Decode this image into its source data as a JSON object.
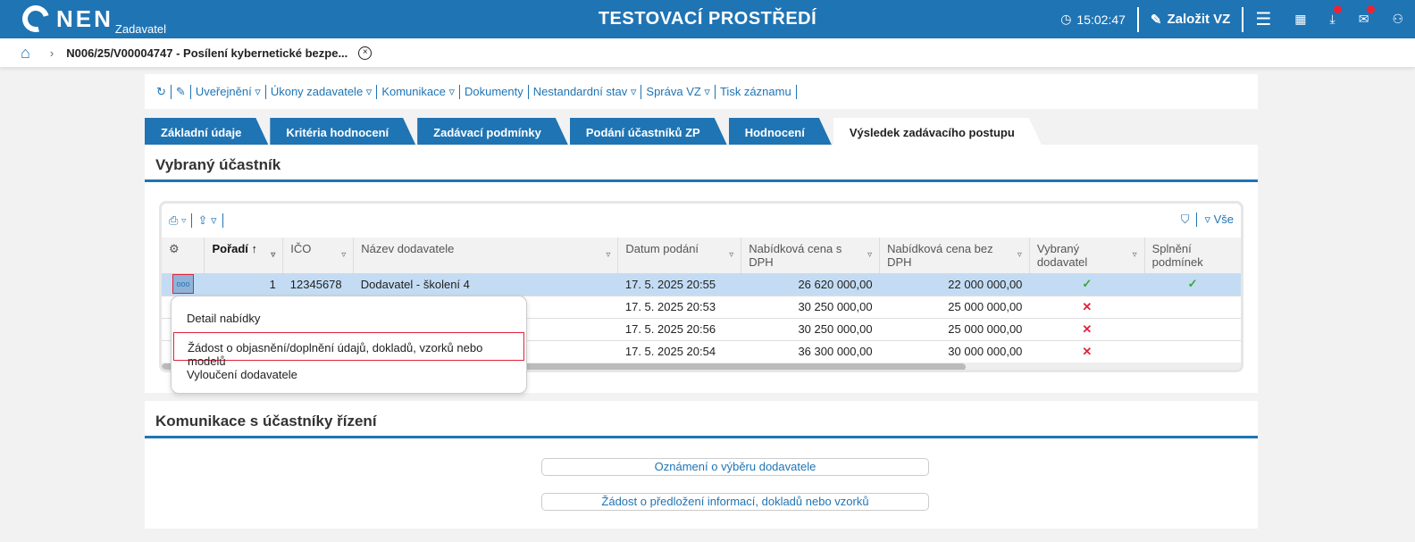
{
  "header": {
    "logo": "NEN",
    "logo_sub": "Zadavatel",
    "env_title": "TESTOVACÍ PROSTŘEDÍ",
    "time": "15:02:47",
    "create_label": "Založit VZ"
  },
  "breadcrumb": {
    "title": "N006/25/V00004747 - Posílení kybernetické bezpe..."
  },
  "toolbar": {
    "items": [
      "Uveřejnění ▿",
      "Úkony zadavatele ▿",
      "Komunikace ▿",
      "Dokumenty",
      "Nestandardní stav ▿",
      "Správa VZ ▿",
      "Tisk záznamu"
    ]
  },
  "tabs": [
    "Základní údaje",
    "Kritéria hodnocení",
    "Zadávací podmínky",
    "Podání účastníků ZP",
    "Hodnocení",
    "Výsledek zadávacího postupu"
  ],
  "selected": {
    "title": "Vybraný účastník",
    "filter_all": "Vše",
    "columns": [
      "Pořadí",
      "IČO",
      "Název dodavatele",
      "Datum podání",
      "Nabídková cena s DPH",
      "Nabídková cena bez DPH",
      "Vybraný dodavatel",
      "Splnění podmínek"
    ],
    "rows": [
      {
        "rank": "1",
        "ico": "12345678",
        "name": "Dodavatel - školení 4",
        "date": "17. 5. 2025 20:55",
        "price_vat": "26 620 000,00",
        "price": "22 000 000,00",
        "chosen": true,
        "met": true
      },
      {
        "rank": "",
        "ico": "",
        "name": "",
        "date": "17. 5. 2025 20:53",
        "price_vat": "30 250 000,00",
        "price": "25 000 000,00",
        "chosen": false,
        "met": null
      },
      {
        "rank": "",
        "ico": "",
        "name": "",
        "date": "17. 5. 2025 20:56",
        "price_vat": "30 250 000,00",
        "price": "25 000 000,00",
        "chosen": false,
        "met": null
      },
      {
        "rank": "",
        "ico": "",
        "name": "",
        "date": "17. 5. 2025 20:54",
        "price_vat": "36 300 000,00",
        "price": "30 000 000,00",
        "chosen": false,
        "met": null
      }
    ]
  },
  "context_menu": [
    "Detail nabídky",
    "Žádost o objasnění/doplnění údajů, dokladů, vzorků nebo modelů",
    "Vyloučení dodavatele"
  ],
  "communication": {
    "title": "Komunikace s účastníky řízení",
    "buttons": [
      "Oznámení o výběru dodavatele",
      "Žádost o předložení informací, dokladů nebo vzorků"
    ]
  }
}
